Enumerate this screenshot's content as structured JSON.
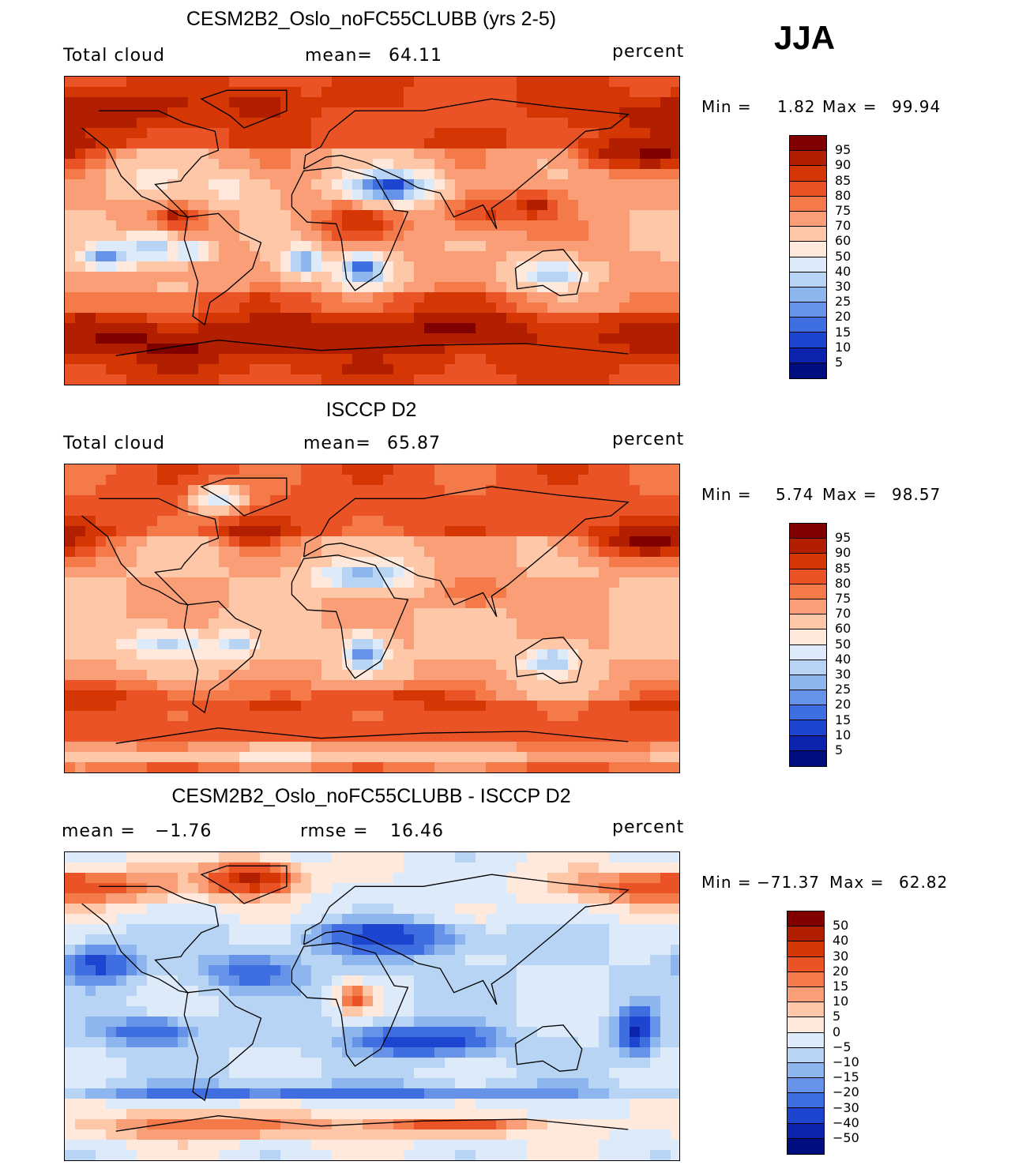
{
  "season": "JJA",
  "chart_data": [
    {
      "type": "heatmap",
      "title": "CESM2B2_Oslo_noFC55CLUBB (yrs 2-5)",
      "left_label": "Total cloud",
      "center_label": "mean=",
      "center_value": "64.11",
      "units": "percent",
      "min_label": "Min =",
      "min_value": "1.82",
      "max_label": "Max =",
      "max_value": "99.94",
      "colorbar_levels": [
        "95",
        "90",
        "85",
        "80",
        "75",
        "70",
        "60",
        "50",
        "40",
        "30",
        "25",
        "20",
        "15",
        "10",
        "5"
      ],
      "colorbar_colors": [
        "#800000",
        "#b21e00",
        "#d43604",
        "#ea5326",
        "#f57a4a",
        "#fa9e78",
        "#fdc7a8",
        "#fee9dc",
        "#dceaf9",
        "#b8d4f4",
        "#8db6ee",
        "#6693e8",
        "#3f6ee0",
        "#1e45cf",
        "#0c23ad",
        "#000d7e"
      ],
      "fields": {
        "blobs": [
          {
            "cx": -140,
            "cy": 70,
            "rx": 60,
            "ry": 12,
            "v": 95
          },
          {
            "cx": -35,
            "cy": 75,
            "rx": 25,
            "ry": 10,
            "v": 95
          },
          {
            "cx": -165,
            "cy": 45,
            "rx": 30,
            "ry": 8,
            "v": 95
          },
          {
            "cx": 170,
            "cy": 45,
            "rx": 25,
            "ry": 8,
            "v": 92
          },
          {
            "cx": -90,
            "cy": -65,
            "rx": 120,
            "ry": 12,
            "v": 96
          },
          {
            "cx": 60,
            "cy": -60,
            "rx": 80,
            "ry": 12,
            "v": 95
          },
          {
            "cx": 0,
            "cy": -80,
            "rx": 180,
            "ry": 5,
            "v": 88
          },
          {
            "cx": 70,
            "cy": -42,
            "rx": 60,
            "ry": 6,
            "v": 88
          },
          {
            "cx": -60,
            "cy": -42,
            "rx": 60,
            "ry": 5,
            "v": 88
          },
          {
            "cx": 40,
            "cy": 25,
            "rx": 25,
            "ry": 10,
            "v": 8
          },
          {
            "cx": 25,
            "cy": -22,
            "rx": 15,
            "ry": 10,
            "v": 15
          },
          {
            "cx": -10,
            "cy": -18,
            "rx": 10,
            "ry": 8,
            "v": 18
          },
          {
            "cx": -125,
            "cy": -15,
            "rx": 15,
            "ry": 7,
            "v": 22
          },
          {
            "cx": -100,
            "cy": -10,
            "rx": 15,
            "ry": 8,
            "v": 28
          },
          {
            "cx": -75,
            "cy": -12,
            "rx": 10,
            "ry": 5,
            "v": 25
          },
          {
            "cx": 135,
            "cy": -25,
            "rx": 20,
            "ry": 8,
            "v": 35
          },
          {
            "cx": 95,
            "cy": 10,
            "rx": 25,
            "ry": 10,
            "v": 88
          },
          {
            "cx": 125,
            "cy": 15,
            "rx": 15,
            "ry": 8,
            "v": 90
          },
          {
            "cx": 20,
            "cy": 5,
            "rx": 25,
            "ry": 12,
            "v": 85
          },
          {
            "cx": -85,
            "cy": 8,
            "rx": 12,
            "ry": 6,
            "v": 88
          },
          {
            "cx": -100,
            "cy": 30,
            "rx": 20,
            "ry": 10,
            "v": 55
          },
          {
            "cx": -55,
            "cy": 25,
            "rx": 20,
            "ry": 8,
            "v": 55
          }
        ],
        "base": 72
      }
    },
    {
      "type": "heatmap",
      "title": "ISCCP D2",
      "left_label": "Total cloud",
      "center_label": "mean=",
      "center_value": "65.87",
      "units": "percent",
      "min_label": "Min =",
      "min_value": "5.74",
      "max_label": "Max =",
      "max_value": "98.57",
      "colorbar_levels": [
        "95",
        "90",
        "85",
        "80",
        "75",
        "70",
        "60",
        "50",
        "40",
        "30",
        "25",
        "20",
        "15",
        "10",
        "5"
      ],
      "colorbar_colors": [
        "#800000",
        "#b21e00",
        "#d43604",
        "#ea5326",
        "#f57a4a",
        "#fa9e78",
        "#fdc7a8",
        "#fee9dc",
        "#dceaf9",
        "#b8d4f4",
        "#8db6ee",
        "#6693e8",
        "#3f6ee0",
        "#1e45cf",
        "#0c23ad",
        "#000d7e"
      ],
      "fields": {
        "blobs": [
          {
            "cx": -170,
            "cy": 45,
            "rx": 40,
            "ry": 10,
            "v": 95
          },
          {
            "cx": -40,
            "cy": 50,
            "rx": 20,
            "ry": 8,
            "v": 92
          },
          {
            "cx": -110,
            "cy": -45,
            "rx": 70,
            "ry": 8,
            "v": 85
          },
          {
            "cx": 40,
            "cy": -45,
            "rx": 50,
            "ry": 6,
            "v": 88
          },
          {
            "cx": 90,
            "cy": 15,
            "rx": 20,
            "ry": 10,
            "v": 82
          },
          {
            "cx": -90,
            "cy": -15,
            "rx": 25,
            "ry": 8,
            "v": 35
          },
          {
            "cx": 25,
            "cy": -20,
            "rx": 12,
            "ry": 10,
            "v": 18
          },
          {
            "cx": 25,
            "cy": 25,
            "rx": 25,
            "ry": 8,
            "v": 25
          },
          {
            "cx": 135,
            "cy": -25,
            "rx": 15,
            "ry": 8,
            "v": 30
          },
          {
            "cx": -50,
            "cy": -15,
            "rx": 12,
            "ry": 7,
            "v": 35
          },
          {
            "cx": 0,
            "cy": -80,
            "rx": 180,
            "ry": 6,
            "v": 60
          },
          {
            "cx": -60,
            "cy": 70,
            "rx": 15,
            "ry": 8,
            "v": 45
          }
        ],
        "base": 70
      }
    },
    {
      "type": "heatmap",
      "title": "CESM2B2_Oslo_noFC55CLUBB - ISCCP D2",
      "left_label": "mean =",
      "left_value": "−1.76",
      "center_label": "rmse =",
      "center_value": "16.46",
      "units": "percent",
      "min_label": "Min =",
      "min_value": "−71.37",
      "max_label": "Max =",
      "max_value": "62.82",
      "colorbar_levels": [
        "50",
        "40",
        "30",
        "20",
        "15",
        "10",
        "5",
        "0",
        "−5",
        "−10",
        "−15",
        "−20",
        "−30",
        "−40",
        "−50"
      ],
      "colorbar_colors": [
        "#800000",
        "#b21e00",
        "#d43604",
        "#ea5326",
        "#f57a4a",
        "#fa9e78",
        "#fdc7a8",
        "#fee9dc",
        "#dceaf9",
        "#b8d4f4",
        "#8db6ee",
        "#6693e8",
        "#3f6ee0",
        "#1e45cf",
        "#0c23ad",
        "#000d7e"
      ],
      "fields": {
        "blobs": [
          {
            "cx": -40,
            "cy": 75,
            "rx": 25,
            "ry": 10,
            "v": 45
          },
          {
            "cx": -150,
            "cy": 70,
            "rx": 60,
            "ry": 10,
            "v": 30
          },
          {
            "cx": 40,
            "cy": 40,
            "rx": 40,
            "ry": 10,
            "v": -35
          },
          {
            "cx": 60,
            "cy": -20,
            "rx": 40,
            "ry": 8,
            "v": -40
          },
          {
            "cx": -100,
            "cy": -15,
            "rx": 25,
            "ry": 8,
            "v": -30
          },
          {
            "cx": -130,
            "cy": 25,
            "rx": 20,
            "ry": 10,
            "v": -35
          },
          {
            "cx": -40,
            "cy": 20,
            "rx": 30,
            "ry": 10,
            "v": -25
          },
          {
            "cx": 20,
            "cy": 5,
            "rx": 10,
            "ry": 8,
            "v": 20
          },
          {
            "cx": -60,
            "cy": -70,
            "rx": 80,
            "ry": 8,
            "v": 20
          },
          {
            "cx": 80,
            "cy": -70,
            "rx": 40,
            "ry": 5,
            "v": 30
          },
          {
            "cx": 0,
            "cy": -50,
            "rx": 180,
            "ry": 4,
            "v": -25
          },
          {
            "cx": -175,
            "cy": -15,
            "rx": 10,
            "ry": 12,
            "v": -45
          }
        ],
        "base": -5
      }
    }
  ]
}
